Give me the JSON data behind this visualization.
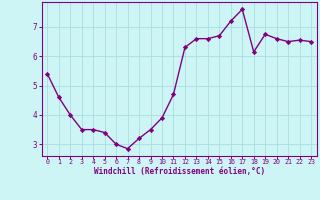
{
  "x": [
    0,
    1,
    2,
    3,
    4,
    5,
    6,
    7,
    8,
    9,
    10,
    11,
    12,
    13,
    14,
    15,
    16,
    17,
    18,
    19,
    20,
    21,
    22,
    23
  ],
  "y": [
    5.4,
    4.6,
    4.0,
    3.5,
    3.5,
    3.4,
    3.0,
    2.85,
    3.2,
    3.5,
    3.9,
    4.7,
    6.3,
    6.6,
    6.6,
    6.7,
    7.2,
    7.6,
    6.15,
    6.75,
    6.6,
    6.5,
    6.55,
    6.5
  ],
  "line_color": "#800080",
  "marker": "D",
  "markersize": 2.2,
  "linewidth": 1.0,
  "bg_color": "#cef5f5",
  "grid_color": "#a8dede",
  "xlabel": "Windchill (Refroidissement éolien,°C)",
  "xlabel_color": "#800080",
  "tick_color": "#800080",
  "spine_color": "#800080",
  "ylim": [
    2.6,
    7.85
  ],
  "yticks": [
    3,
    4,
    5,
    6,
    7
  ],
  "xticks": [
    0,
    1,
    2,
    3,
    4,
    5,
    6,
    7,
    8,
    9,
    10,
    11,
    12,
    13,
    14,
    15,
    16,
    17,
    18,
    19,
    20,
    21,
    22,
    23
  ],
  "xlim": [
    -0.5,
    23.5
  ],
  "xtick_fontsize": 4.8,
  "ytick_fontsize": 5.5,
  "xlabel_fontsize": 5.5
}
